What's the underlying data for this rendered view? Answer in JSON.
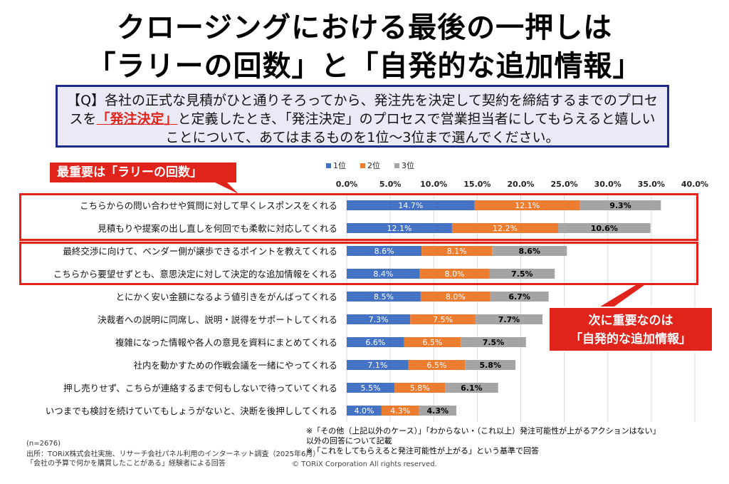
{
  "title": {
    "line1": "クロージングにおける最後の一押しは",
    "line2": "「ラリーの回数」と「自発的な追加情報」"
  },
  "question": {
    "part1": "【Q】各社の正式な見積がひと通りそろってから、発注先を決定して契約を締結するまでのプロセスを",
    "highlight": "「発注決定」",
    "part2": "と定義したとき、「発注決定」のプロセスで営業担当者にしてもらえると嬉しいことについて、あてはまるものを1位〜3位まで選んでください。"
  },
  "callouts": {
    "top": "最重要は「ラリーの回数」",
    "second_line1": "次に重要なのは",
    "second_line2": "「自発的な追加情報」"
  },
  "colors": {
    "rank1": "#4472c4",
    "rank2": "#ed7d31",
    "rank3": "#a5a5a5",
    "accent": "#e0241b",
    "frame": "#1e2a8c"
  },
  "chart_data": {
    "type": "bar",
    "orientation": "horizontal",
    "stacked": true,
    "categories": [
      "こちらからの問い合わせや質問に対して早くレスポンスをくれる",
      "見積もりや提案の出し直しを何回でも柔軟に対応してくれる",
      "最終交渉に向けて、ベンダー側が譲歩できるポイントを教えてくれる",
      "こちらから要望せずとも、意思決定に対して決定的な追加情報をくれる",
      "とにかく安い金額になるよう値引きをがんばってくれる",
      "決裁者への説明に同席し、説明・説得をサポートしてくれる",
      "複雑になった情報や各人の意見を資料にまとめてくれる",
      "社内を動かすための作戦会議を一緒にやってくれる",
      "押し売りせず、こちらが連絡するまで何もしないで待っていてくれる",
      "いつまでも検討を続けていてもしょうがないと、決断を後押ししてくれる"
    ],
    "series": [
      {
        "name": "1位",
        "values": [
          14.7,
          12.1,
          8.6,
          8.4,
          8.5,
          7.3,
          6.6,
          7.1,
          5.5,
          4.0
        ],
        "labels": [
          "14.7%",
          "12.1%",
          "8.6%",
          "8.4%",
          "8.5%",
          "7.3%",
          "6.6%",
          "7.1%",
          "5.5%",
          "4.0%"
        ]
      },
      {
        "name": "2位",
        "values": [
          12.1,
          12.2,
          8.1,
          8.0,
          8.0,
          7.5,
          6.5,
          6.5,
          5.8,
          4.3
        ],
        "labels": [
          "12.1%",
          "12.2%",
          "8.1%",
          "8.0%",
          "8.0%",
          "7.5%",
          "6.5%",
          "6.5%",
          "5.8%",
          "4.3%"
        ]
      },
      {
        "name": "3位",
        "values": [
          9.3,
          10.6,
          8.6,
          7.5,
          6.7,
          7.7,
          7.5,
          5.8,
          6.1,
          4.3
        ],
        "labels": [
          "9.3%",
          "10.6%",
          "8.6%",
          "7.5%",
          "6.7%",
          "7.7%",
          "7.5%",
          "5.8%",
          "6.1%",
          "4.3%"
        ]
      }
    ],
    "xlim": [
      0,
      40
    ],
    "xticks": [
      "0.0%",
      "5.0%",
      "10.0%",
      "15.0%",
      "20.0%",
      "25.0%",
      "30.0%",
      "35.0%",
      "40.0%"
    ],
    "legend": "top",
    "grid": true
  },
  "footer": {
    "n": "(n=2676)",
    "source": "出所：TORiX株式会社実施、リサーチ会社パネル利用のインターネット調査（2025年6月）",
    "target": "「会社の予算で何かを購買したことがある」経験者による回答",
    "note1": "※「その他（上記以外のケース）」「わからない・（これ以上）発注可能性が上がるアクションはない」",
    "note2": "以外の回答について記載",
    "note3": "※「これをしてもらえると発注可能性が上がる」という基準で回答",
    "copyright": "© TORiX Corporation All rights reserved."
  }
}
